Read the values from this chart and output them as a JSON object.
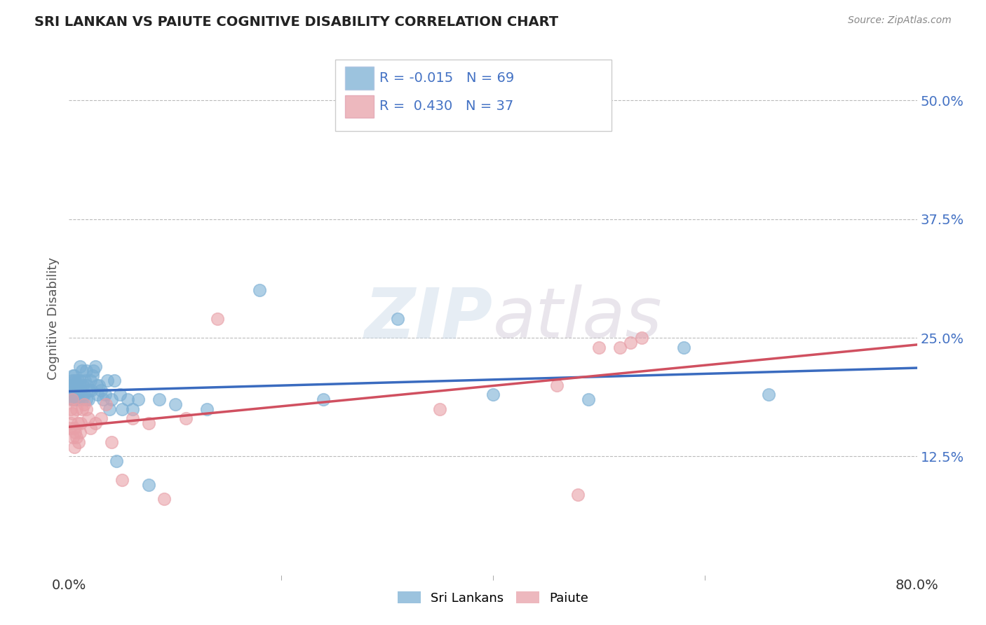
{
  "title": "SRI LANKAN VS PAIUTE COGNITIVE DISABILITY CORRELATION CHART",
  "source": "Source: ZipAtlas.com",
  "ylabel": "Cognitive Disability",
  "xmin": 0.0,
  "xmax": 0.8,
  "ymin": 0.0,
  "ymax": 0.54,
  "sri_lankan_R": -0.015,
  "sri_lankan_N": 69,
  "paiute_R": 0.43,
  "paiute_N": 37,
  "sri_lankan_color": "#7bafd4",
  "paiute_color": "#e8a0a8",
  "sri_lankan_line_color": "#3a6bbf",
  "paiute_line_color": "#d05060",
  "background_color": "#ffffff",
  "sri_lankans_x": [
    0.001,
    0.002,
    0.002,
    0.003,
    0.003,
    0.003,
    0.004,
    0.004,
    0.004,
    0.004,
    0.005,
    0.005,
    0.005,
    0.005,
    0.006,
    0.006,
    0.006,
    0.007,
    0.007,
    0.007,
    0.008,
    0.008,
    0.009,
    0.009,
    0.01,
    0.01,
    0.011,
    0.012,
    0.012,
    0.013,
    0.014,
    0.015,
    0.016,
    0.016,
    0.017,
    0.018,
    0.019,
    0.02,
    0.021,
    0.022,
    0.023,
    0.025,
    0.026,
    0.027,
    0.028,
    0.03,
    0.032,
    0.034,
    0.036,
    0.038,
    0.04,
    0.043,
    0.045,
    0.048,
    0.05,
    0.055,
    0.06,
    0.065,
    0.075,
    0.085,
    0.1,
    0.13,
    0.18,
    0.24,
    0.31,
    0.4,
    0.49,
    0.58,
    0.66
  ],
  "sri_lankans_y": [
    0.195,
    0.19,
    0.2,
    0.185,
    0.195,
    0.205,
    0.19,
    0.2,
    0.21,
    0.185,
    0.195,
    0.2,
    0.185,
    0.21,
    0.195,
    0.205,
    0.19,
    0.185,
    0.2,
    0.195,
    0.205,
    0.19,
    0.195,
    0.185,
    0.22,
    0.205,
    0.195,
    0.215,
    0.185,
    0.2,
    0.19,
    0.205,
    0.215,
    0.185,
    0.2,
    0.185,
    0.195,
    0.205,
    0.195,
    0.21,
    0.215,
    0.22,
    0.2,
    0.19,
    0.2,
    0.195,
    0.185,
    0.19,
    0.205,
    0.175,
    0.185,
    0.205,
    0.12,
    0.19,
    0.175,
    0.185,
    0.175,
    0.185,
    0.095,
    0.185,
    0.18,
    0.175,
    0.3,
    0.185,
    0.27,
    0.19,
    0.185,
    0.24,
    0.19
  ],
  "paiute_x": [
    0.001,
    0.002,
    0.002,
    0.003,
    0.003,
    0.004,
    0.005,
    0.005,
    0.006,
    0.007,
    0.007,
    0.008,
    0.009,
    0.01,
    0.011,
    0.012,
    0.014,
    0.016,
    0.018,
    0.02,
    0.025,
    0.03,
    0.035,
    0.04,
    0.05,
    0.06,
    0.075,
    0.09,
    0.11,
    0.14,
    0.35,
    0.46,
    0.48,
    0.5,
    0.52,
    0.53,
    0.54
  ],
  "paiute_y": [
    0.155,
    0.16,
    0.175,
    0.17,
    0.185,
    0.145,
    0.155,
    0.135,
    0.15,
    0.145,
    0.175,
    0.16,
    0.14,
    0.15,
    0.16,
    0.175,
    0.18,
    0.175,
    0.165,
    0.155,
    0.16,
    0.165,
    0.18,
    0.14,
    0.1,
    0.165,
    0.16,
    0.08,
    0.165,
    0.27,
    0.175,
    0.2,
    0.085,
    0.24,
    0.24,
    0.245,
    0.25
  ]
}
